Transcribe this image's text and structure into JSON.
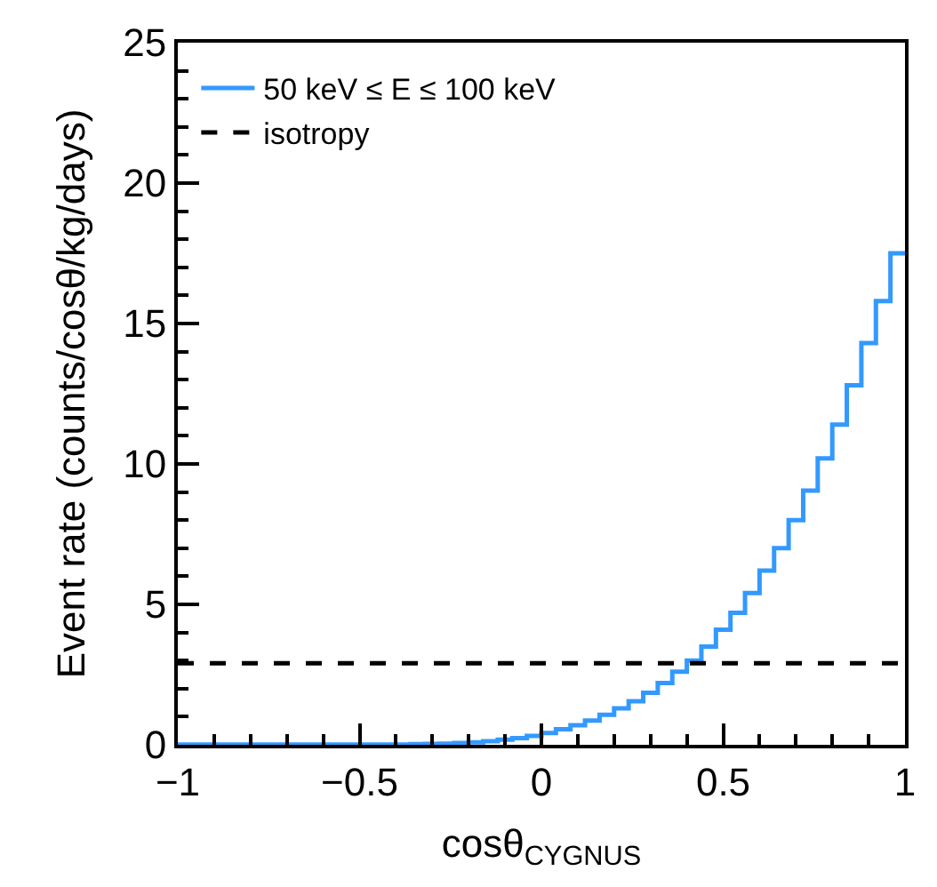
{
  "chart_data": {
    "type": "histogram",
    "xlabel": "cosθ$_{CYGNUS}$",
    "ylabel": "Event rate (counts/cosθ/kg/days)",
    "bins": [
      -1,
      -0.96,
      -0.92,
      -0.88,
      -0.84,
      -0.8,
      -0.76,
      -0.72,
      -0.68,
      -0.64,
      -0.6,
      -0.56,
      -0.52,
      -0.48,
      -0.44,
      -0.4,
      -0.36,
      -0.32,
      -0.28,
      -0.24,
      -0.2,
      -0.16,
      -0.12,
      -0.08,
      -0.04,
      0,
      0.04,
      0.08,
      0.12,
      0.16,
      0.2,
      0.24,
      0.28,
      0.32,
      0.36,
      0.4,
      0.44,
      0.48,
      0.52,
      0.56,
      0.6,
      0.64,
      0.68,
      0.72,
      0.76,
      0.8,
      0.84,
      0.88,
      0.92,
      0.96,
      1
    ],
    "series": [
      {
        "name": "50 keV ≤ E ≤ 100 keV",
        "color": "#3399ff",
        "values": [
          0.01,
          0.01,
          0.01,
          0.01,
          0.01,
          0.01,
          0.01,
          0.01,
          0.01,
          0.01,
          0.01,
          0.01,
          0.01,
          0.01,
          0.01,
          0.01,
          0.02,
          0.03,
          0.04,
          0.06,
          0.09,
          0.13,
          0.18,
          0.24,
          0.32,
          0.42,
          0.55,
          0.7,
          0.86,
          1.07,
          1.3,
          1.55,
          1.85,
          2.2,
          2.6,
          3.0,
          3.5,
          4.1,
          4.7,
          5.4,
          6.2,
          7.0,
          8.0,
          9.05,
          10.2,
          11.4,
          12.8,
          14.3,
          15.8,
          17.5
        ]
      }
    ],
    "ref_lines": [
      {
        "axis": "y",
        "value": 2.9,
        "label": "isotropy",
        "color": "#000000",
        "line_style": "dashed"
      }
    ],
    "xlim": [
      -1,
      1
    ],
    "xticks": [
      {
        "value": -1,
        "label": "−1"
      },
      {
        "value": -0.5,
        "label": "−0.5"
      },
      0,
      0.5,
      1
    ],
    "ylim": [
      0,
      25
    ],
    "yticks": [
      0,
      5,
      10,
      15,
      20,
      25
    ],
    "legend": "top left"
  }
}
